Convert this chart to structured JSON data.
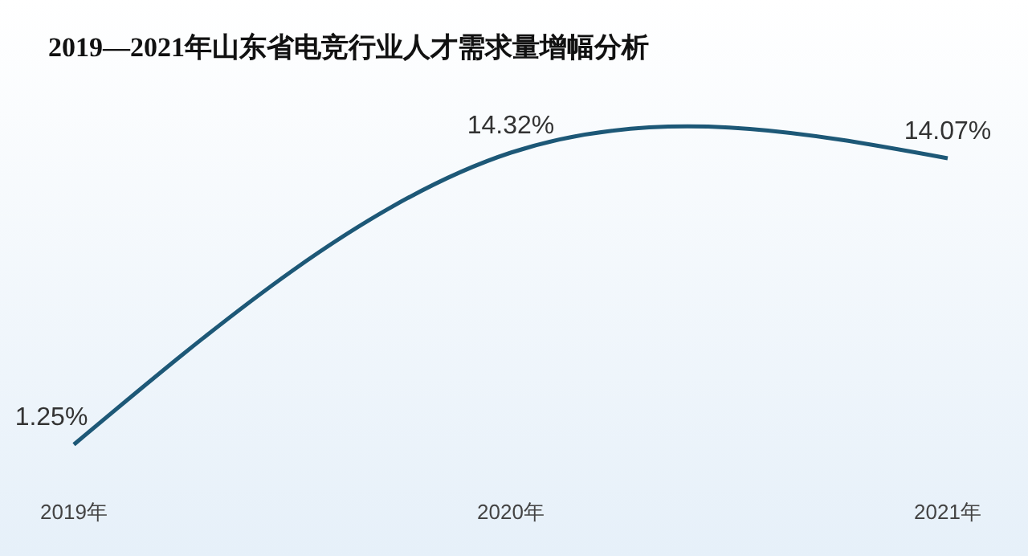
{
  "chart_data": {
    "type": "line",
    "title": "2019—2021年山东省电竞行业人才需求量增幅分析",
    "categories": [
      "2019年",
      "2020年",
      "2021年"
    ],
    "series": [
      {
        "color": "#1d5877",
        "values": [
          1.25,
          14.32,
          14.07
        ],
        "value_labels": [
          "1.25%",
          "14.32%",
          "14.07%"
        ]
      }
    ],
    "marker": "none",
    "line_style": "solid"
  }
}
